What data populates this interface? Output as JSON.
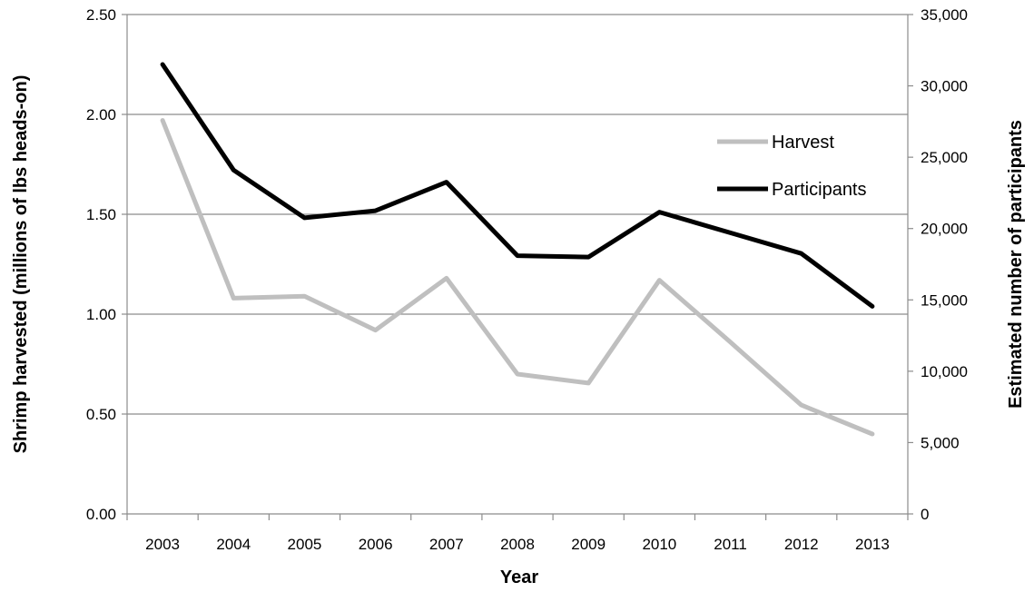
{
  "chart_data": {
    "type": "line",
    "title": "",
    "xlabel": "Year",
    "ylabel_left": "Shrimp harvested (millions of lbs heads-on)",
    "ylabel_right": "Estimated number of participants",
    "categories": [
      "2003",
      "2004",
      "2005",
      "2006",
      "2007",
      "2008",
      "2009",
      "2010",
      "2011",
      "2012",
      "2013"
    ],
    "y_left": {
      "lim": [
        0,
        2.5
      ],
      "ticks": [
        0,
        0.5,
        1.0,
        1.5,
        2.0,
        2.5
      ],
      "tick_labels": [
        "0.00",
        "0.50",
        "1.00",
        "1.50",
        "2.00",
        "2.50"
      ]
    },
    "y_right": {
      "lim": [
        0,
        35000
      ],
      "ticks": [
        0,
        5000,
        10000,
        15000,
        20000,
        25000,
        30000,
        35000
      ],
      "tick_labels": [
        "0",
        "5,000",
        "10,000",
        "15,000",
        "20,000",
        "25,000",
        "30,000",
        "35,000"
      ]
    },
    "series": [
      {
        "name": "Harvest",
        "axis": "left",
        "color": "#bfbfbf",
        "values": [
          1.97,
          1.08,
          1.09,
          0.92,
          1.18,
          0.7,
          0.655,
          1.17,
          0.86,
          0.545,
          0.4
        ]
      },
      {
        "name": "Participants",
        "axis": "right",
        "color": "#000000",
        "values": [
          31500,
          24100,
          20750,
          21250,
          23250,
          18100,
          18000,
          21150,
          19700,
          18250,
          14550
        ]
      }
    ],
    "grid": true,
    "legend": "top-right"
  }
}
